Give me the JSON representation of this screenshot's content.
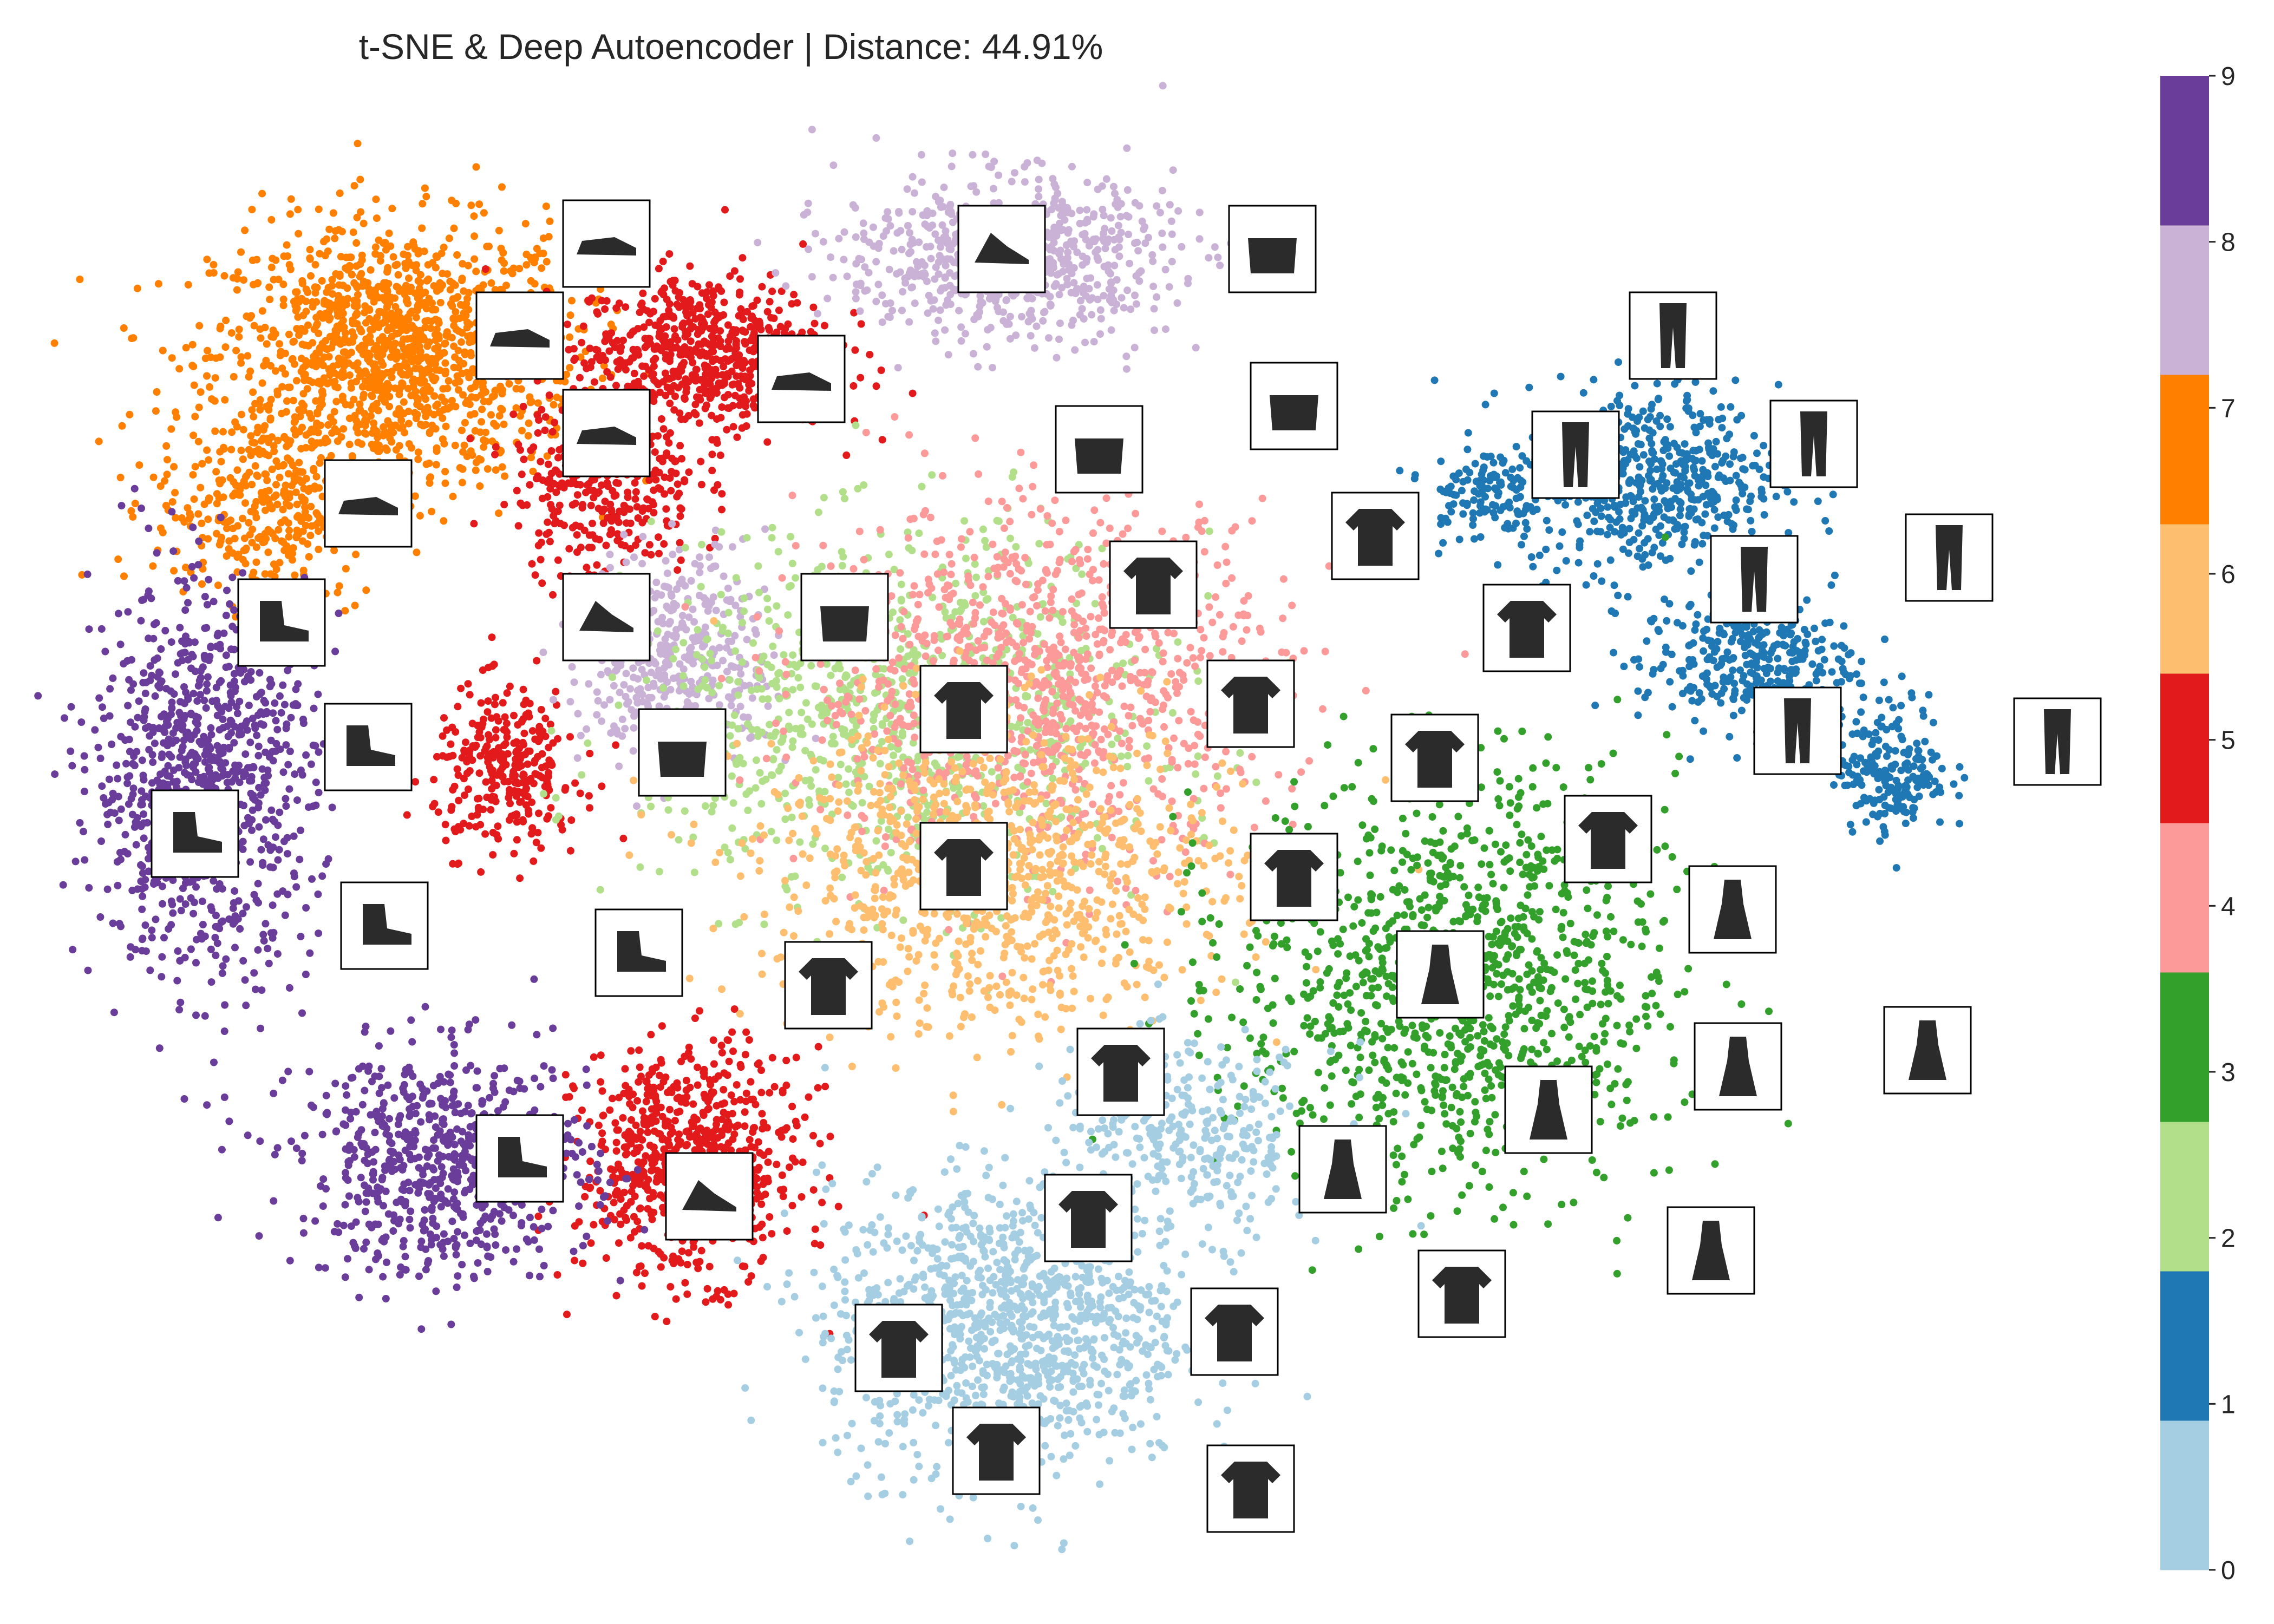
{
  "chart_data": {
    "type": "scatter",
    "title": "t-SNE & Deep Autoencoder | Distance: 44.91%",
    "xlabel": "",
    "ylabel": "",
    "grid": false,
    "legend": "none",
    "colorbar": {
      "placement": "right",
      "range": [
        0,
        9
      ],
      "ticks": [
        "0",
        "1",
        "2",
        "3",
        "4",
        "5",
        "6",
        "7",
        "8",
        "9"
      ],
      "colors": [
        "#a6cee3",
        "#1f78b4",
        "#b2df8a",
        "#33a02c",
        "#fb9a99",
        "#e31a1c",
        "#fdbf6f",
        "#ff7f00",
        "#cab2d6",
        "#6a3d9a"
      ]
    },
    "clusters": [
      {
        "label": 7,
        "color": "#ff7f00",
        "center": [
          -55,
          44
        ],
        "spread": [
          10,
          8
        ],
        "count": 1400
      },
      {
        "label": 7,
        "color": "#ff7f00",
        "center": [
          -66,
          30
        ],
        "spread": [
          6,
          6
        ],
        "count": 350
      },
      {
        "label": 5,
        "color": "#e31a1c",
        "center": [
          -30,
          44
        ],
        "spread": [
          7,
          5
        ],
        "count": 650
      },
      {
        "label": 5,
        "color": "#e31a1c",
        "center": [
          -38,
          32
        ],
        "spread": [
          5,
          6
        ],
        "count": 350
      },
      {
        "label": 5,
        "color": "#e31a1c",
        "center": [
          -46,
          5
        ],
        "spread": [
          4,
          5
        ],
        "count": 300
      },
      {
        "label": 5,
        "color": "#e31a1c",
        "center": [
          -31,
          -32
        ],
        "spread": [
          6,
          7
        ],
        "count": 750
      },
      {
        "label": 9,
        "color": "#6a3d9a",
        "center": [
          -71,
          4
        ],
        "spread": [
          6,
          12
        ],
        "count": 950
      },
      {
        "label": 9,
        "color": "#6a3d9a",
        "center": [
          -51,
          -32
        ],
        "spread": [
          8,
          7
        ],
        "count": 700
      },
      {
        "label": 8,
        "color": "#cab2d6",
        "center": [
          -5,
          53
        ],
        "spread": [
          9,
          5
        ],
        "count": 750
      },
      {
        "label": 8,
        "color": "#cab2d6",
        "center": [
          -32,
          15
        ],
        "spread": [
          5,
          7
        ],
        "count": 450
      },
      {
        "label": 1,
        "color": "#1f78b4",
        "center": [
          48,
          32
        ],
        "spread": [
          7,
          6
        ],
        "count": 550
      },
      {
        "label": 1,
        "color": "#1f78b4",
        "center": [
          56,
          15
        ],
        "spread": [
          6,
          4
        ],
        "count": 350
      },
      {
        "label": 1,
        "color": "#1f78b4",
        "center": [
          68,
          5
        ],
        "spread": [
          3,
          4
        ],
        "count": 200
      },
      {
        "label": 1,
        "color": "#1f78b4",
        "center": [
          34,
          31
        ],
        "spread": [
          3,
          3
        ],
        "count": 120
      },
      {
        "label": 2,
        "color": "#b2df8a",
        "center": [
          -13,
          10
        ],
        "spread": [
          14,
          11
        ],
        "count": 1050
      },
      {
        "label": 4,
        "color": "#fb9a99",
        "center": [
          -2,
          13
        ],
        "spread": [
          13,
          11
        ],
        "count": 1050
      },
      {
        "label": 6,
        "color": "#fdbf6f",
        "center": [
          -6,
          -5
        ],
        "spread": [
          13,
          10
        ],
        "count": 950
      },
      {
        "label": 3,
        "color": "#33a02c",
        "center": [
          32,
          -15
        ],
        "spread": [
          12,
          13
        ],
        "count": 1200
      },
      {
        "label": 0,
        "color": "#a6cee3",
        "center": [
          -5,
          -47
        ],
        "spread": [
          10,
          9
        ],
        "count": 1150
      },
      {
        "label": 0,
        "color": "#a6cee3",
        "center": [
          10,
          -30
        ],
        "spread": [
          8,
          6
        ],
        "count": 350
      }
    ],
    "xlim": [
      -85,
      85
    ],
    "ylim": [
      -70,
      70
    ]
  }
}
